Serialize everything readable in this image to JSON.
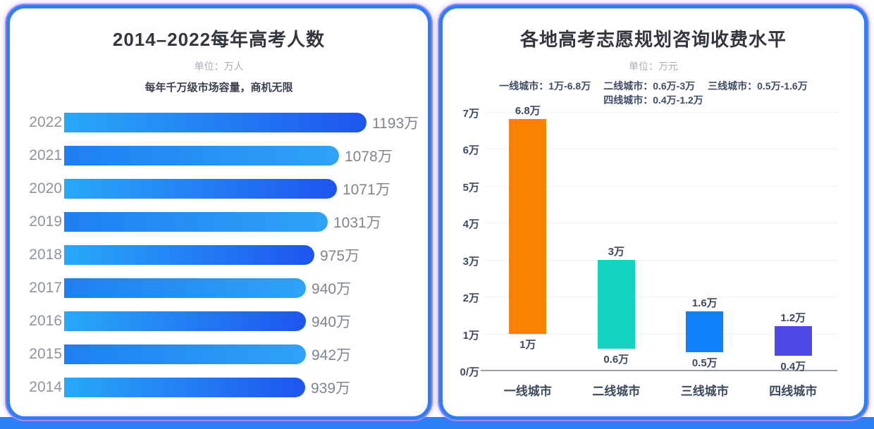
{
  "page": {
    "background": "#ffffff",
    "card_border_color": "#2e7ef7",
    "card_glow_color": "#a18bf7",
    "bottom_band_color": "#2b80f5"
  },
  "chart_data": [
    {
      "type": "bar",
      "orientation": "horizontal",
      "title": "2014–2022每年高考人数",
      "unit_label": "单位：万人",
      "subtitle": "每年千万级市场容量，商机无限",
      "categories": [
        "2022",
        "2021",
        "2020",
        "2019",
        "2018",
        "2017",
        "2016",
        "2015",
        "2014"
      ],
      "values": [
        1193,
        1078,
        1071,
        1031,
        975,
        940,
        940,
        942,
        939
      ],
      "value_labels": [
        "1193万",
        "1078万",
        "1071万",
        "1031万",
        "975万",
        "940万",
        "940万",
        "942万",
        "939万"
      ],
      "bar_gradient_even": [
        "#27a9f8",
        "#1e55ef"
      ],
      "bar_gradient_odd": [
        "#1e7ff2",
        "#2fa3f7"
      ],
      "category_color": "#8e949c",
      "value_color": "#7e858d",
      "grid": false,
      "legend_position": "none"
    },
    {
      "type": "bar",
      "subtype": "floating-range",
      "title": "各地高考志愿规划咨询收费水平",
      "unit_label": "单位：万元",
      "legend_items": [
        "一线城市：1万-6.8万",
        "二线城市：0.6万-3万",
        "三线城市：0.5万-1.6万",
        "四线城市：0.4万-1.2万"
      ],
      "legend_position": "top",
      "categories": [
        "一线城市",
        "二线城市",
        "三线城市",
        "四线城市"
      ],
      "series": [
        {
          "name": "low",
          "values": [
            1,
            0.6,
            0.5,
            0.4
          ]
        },
        {
          "name": "high",
          "values": [
            6.8,
            3,
            1.6,
            1.2
          ]
        }
      ],
      "low_labels": [
        "1万",
        "0.6万",
        "0.5万",
        "0.4万"
      ],
      "high_labels": [
        "6.8万",
        "3万",
        "1.6万",
        "1.2万"
      ],
      "bar_colors": [
        "#fa8200",
        "#12d2c0",
        "#0e82f9",
        "#5049e5"
      ],
      "ylim": [
        0,
        7
      ],
      "y_ticks": [
        {
          "value": 0,
          "label": "0/万"
        },
        {
          "value": 1,
          "label": "1万"
        },
        {
          "value": 2,
          "label": "2万"
        },
        {
          "value": 3,
          "label": "3万"
        },
        {
          "value": 4,
          "label": "4万"
        },
        {
          "value": 5,
          "label": "5万"
        },
        {
          "value": 6,
          "label": "6万"
        },
        {
          "value": 7,
          "label": "7万"
        }
      ],
      "grid": true
    }
  ]
}
